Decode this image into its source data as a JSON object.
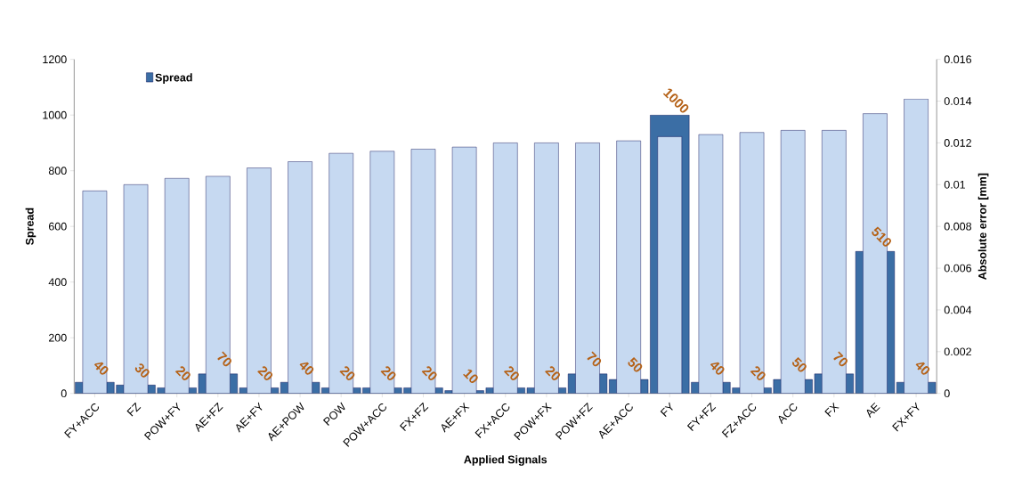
{
  "chart_data": {
    "type": "bar",
    "xlabel": "Applied Signals",
    "ylabel": "Spread",
    "y2label": "Absolute error [mm]",
    "categories": [
      "FY+ACC",
      "FZ",
      "POW+FY",
      "AE+FZ",
      "AE+FY",
      "AE+POW",
      "POW",
      "POW+ACC",
      "FX+FZ",
      "AE+FX",
      "FX+ACC",
      "POW+FX",
      "POW+FZ",
      "AE+ACC",
      "FY",
      "FY+FZ",
      "FZ+ACC",
      "ACC",
      "FX",
      "AE",
      "FX+FY"
    ],
    "series": [
      {
        "name": "Spread",
        "color": "#3b6ea5",
        "values": [
          40,
          30,
          20,
          70,
          20,
          40,
          20,
          20,
          20,
          10,
          20,
          20,
          70,
          50,
          1000,
          40,
          20,
          50,
          70,
          510,
          40
        ],
        "value_labels": [
          "40",
          "30",
          "20",
          "70",
          "20",
          "40",
          "20",
          "20",
          "20",
          "10",
          "20",
          "20",
          "70",
          "50",
          "1000",
          "40",
          "20",
          "50",
          "70",
          "510",
          "40"
        ]
      },
      {
        "color": "#c6d9f1",
        "axis": "y2",
        "values": [
          0.0097,
          0.01,
          0.0103,
          0.0104,
          0.0108,
          0.0111,
          0.0115,
          0.0116,
          0.0117,
          0.0118,
          0.012,
          0.012,
          0.012,
          0.0121,
          0.0123,
          0.0124,
          0.0125,
          0.0126,
          0.0126,
          0.0134,
          0.0141
        ]
      }
    ],
    "ylim": [
      0,
      1200
    ],
    "yticks": [
      0,
      200,
      400,
      600,
      800,
      1000,
      1200
    ],
    "y2lim": [
      0,
      0.016
    ],
    "y2ticks": [
      0,
      0.002,
      0.004,
      0.006,
      0.008,
      0.01,
      0.012,
      0.014,
      0.016
    ],
    "legend": "top left",
    "grid": false
  }
}
